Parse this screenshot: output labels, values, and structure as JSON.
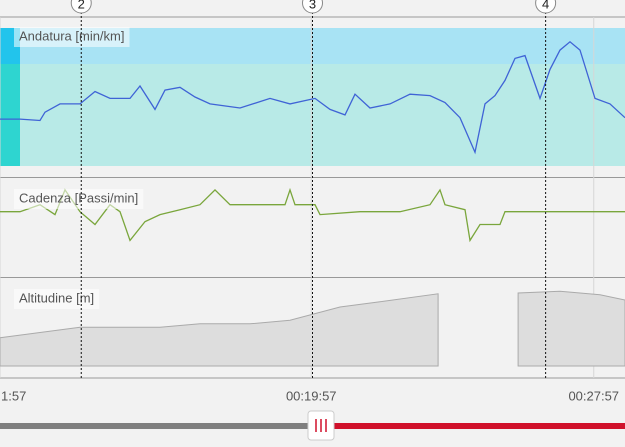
{
  "chart_data": [
    {
      "type": "line",
      "title": "Andatura [min/km]",
      "xlim": [
        0,
        100
      ],
      "ylim": [
        0,
        100
      ],
      "x": [
        0,
        3.2,
        6.4,
        7.2,
        9.6,
        12.8,
        15.2,
        17.6,
        20.8,
        22.4,
        24.8,
        26.4,
        28.8,
        31.2,
        33.6,
        38.4,
        43.2,
        46.4,
        50.4,
        52.8,
        55.2,
        56.8,
        59.2,
        62.4,
        65.6,
        68.8,
        71.2,
        73.6,
        76,
        77.6,
        79.2,
        80.8,
        82.4,
        84,
        86.4,
        88,
        89.6,
        91.2,
        92.8,
        95.2,
        97.6,
        100
      ],
      "series": [
        {
          "color": "#3f63d6",
          "values": [
            34,
            34,
            33,
            39,
            45,
            45,
            54,
            49,
            49,
            58,
            41,
            55,
            57,
            50,
            45,
            42,
            49,
            45,
            49,
            41,
            37,
            52,
            42,
            45,
            52,
            51,
            46,
            35,
            10,
            45,
            51,
            62,
            78,
            80,
            49,
            70,
            84,
            90,
            84,
            49,
            45,
            35
          ]
        }
      ]
    },
    {
      "type": "line",
      "title": "Cadenza [Passi/min]",
      "xlim": [
        0,
        100
      ],
      "ylim": [
        0,
        100
      ],
      "x": [
        0,
        3.2,
        6.4,
        8.8,
        10.4,
        12.8,
        15.2,
        17.6,
        19.2,
        20.8,
        23.2,
        25.6,
        28.8,
        32,
        34.4,
        36.8,
        41.6,
        45.6,
        46.4,
        47.2,
        50.4,
        51.2,
        57.6,
        60.8,
        64,
        68.8,
        70.4,
        71.2,
        74.4,
        75.2,
        76.8,
        80,
        80.8,
        89.6,
        100
      ],
      "series": [
        {
          "color": "#7aa63c",
          "values": [
            66,
            66,
            73,
            63,
            88,
            66,
            53,
            73,
            66,
            37,
            56,
            63,
            68,
            73,
            88,
            73,
            73,
            73,
            88,
            73,
            73,
            63,
            66,
            66,
            66,
            73,
            88,
            73,
            68,
            37,
            53,
            53,
            66,
            66,
            66
          ]
        }
      ]
    },
    {
      "type": "area",
      "title": "Altitudine [m]",
      "xlim": [
        0,
        100
      ],
      "ylim": [
        0,
        100
      ],
      "x": [
        0,
        12.8,
        25.6,
        32,
        40,
        46.4,
        54.4,
        60.8,
        70.1,
        76.5,
        82.9,
        89.6,
        96,
        100
      ],
      "series": [
        {
          "color": "#dddddd",
          "values": [
            32,
            44,
            44,
            48,
            48,
            52,
            67,
            73,
            82,
            null,
            83,
            85,
            81,
            75
          ]
        }
      ]
    }
  ],
  "x_axis": {
    "xlim": [
      0,
      100
    ],
    "xticks": [
      {
        "value": 0,
        "label": "1:57"
      },
      {
        "value": 49.8,
        "label": "00:19:57"
      },
      {
        "value": 95,
        "label": "00:27:57"
      }
    ]
  },
  "markers": [
    {
      "x": 13,
      "label": "2"
    },
    {
      "x": 50,
      "label": "3"
    },
    {
      "x": 87.3,
      "label": "4"
    }
  ]
}
